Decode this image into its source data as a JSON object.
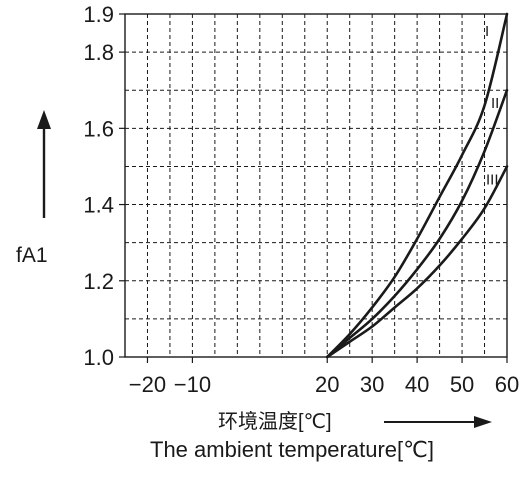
{
  "chart_data": {
    "type": "line",
    "ylabel": "fA1",
    "xlabel_cn": "环境温度[℃]",
    "xlabel_en": "The ambient temperature[℃]",
    "xlim": [
      -25,
      60
    ],
    "ylim": [
      1.0,
      1.9
    ],
    "x_ticks": [
      {
        "value": -20,
        "label": "−20"
      },
      {
        "value": -10,
        "label": "−10"
      },
      {
        "value": 20,
        "label": "20"
      },
      {
        "value": 30,
        "label": "30"
      },
      {
        "value": 40,
        "label": "40"
      },
      {
        "value": 50,
        "label": "50"
      },
      {
        "value": 60,
        "label": "60"
      }
    ],
    "y_ticks": [
      {
        "value": 1.0,
        "label": "1.0"
      },
      {
        "value": 1.2,
        "label": "1.2"
      },
      {
        "value": 1.4,
        "label": "1.4"
      },
      {
        "value": 1.6,
        "label": "1.6"
      },
      {
        "value": 1.8,
        "label": "1.8"
      },
      {
        "value": 1.9,
        "label": "1.9"
      }
    ],
    "grid": true,
    "series": [
      {
        "name": "I",
        "x": [
          20,
          25,
          30,
          35,
          40,
          45,
          50,
          55,
          60
        ],
        "y": [
          1.0,
          1.06,
          1.13,
          1.21,
          1.31,
          1.42,
          1.53,
          1.66,
          1.9
        ]
      },
      {
        "name": "II",
        "x": [
          20,
          25,
          30,
          35,
          40,
          45,
          50,
          55,
          60
        ],
        "y": [
          1.0,
          1.05,
          1.1,
          1.16,
          1.23,
          1.31,
          1.41,
          1.54,
          1.7
        ]
      },
      {
        "name": "III",
        "x": [
          20,
          25,
          30,
          35,
          40,
          45,
          50,
          55,
          60
        ],
        "y": [
          1.0,
          1.04,
          1.08,
          1.13,
          1.18,
          1.24,
          1.31,
          1.39,
          1.5
        ]
      }
    ]
  }
}
